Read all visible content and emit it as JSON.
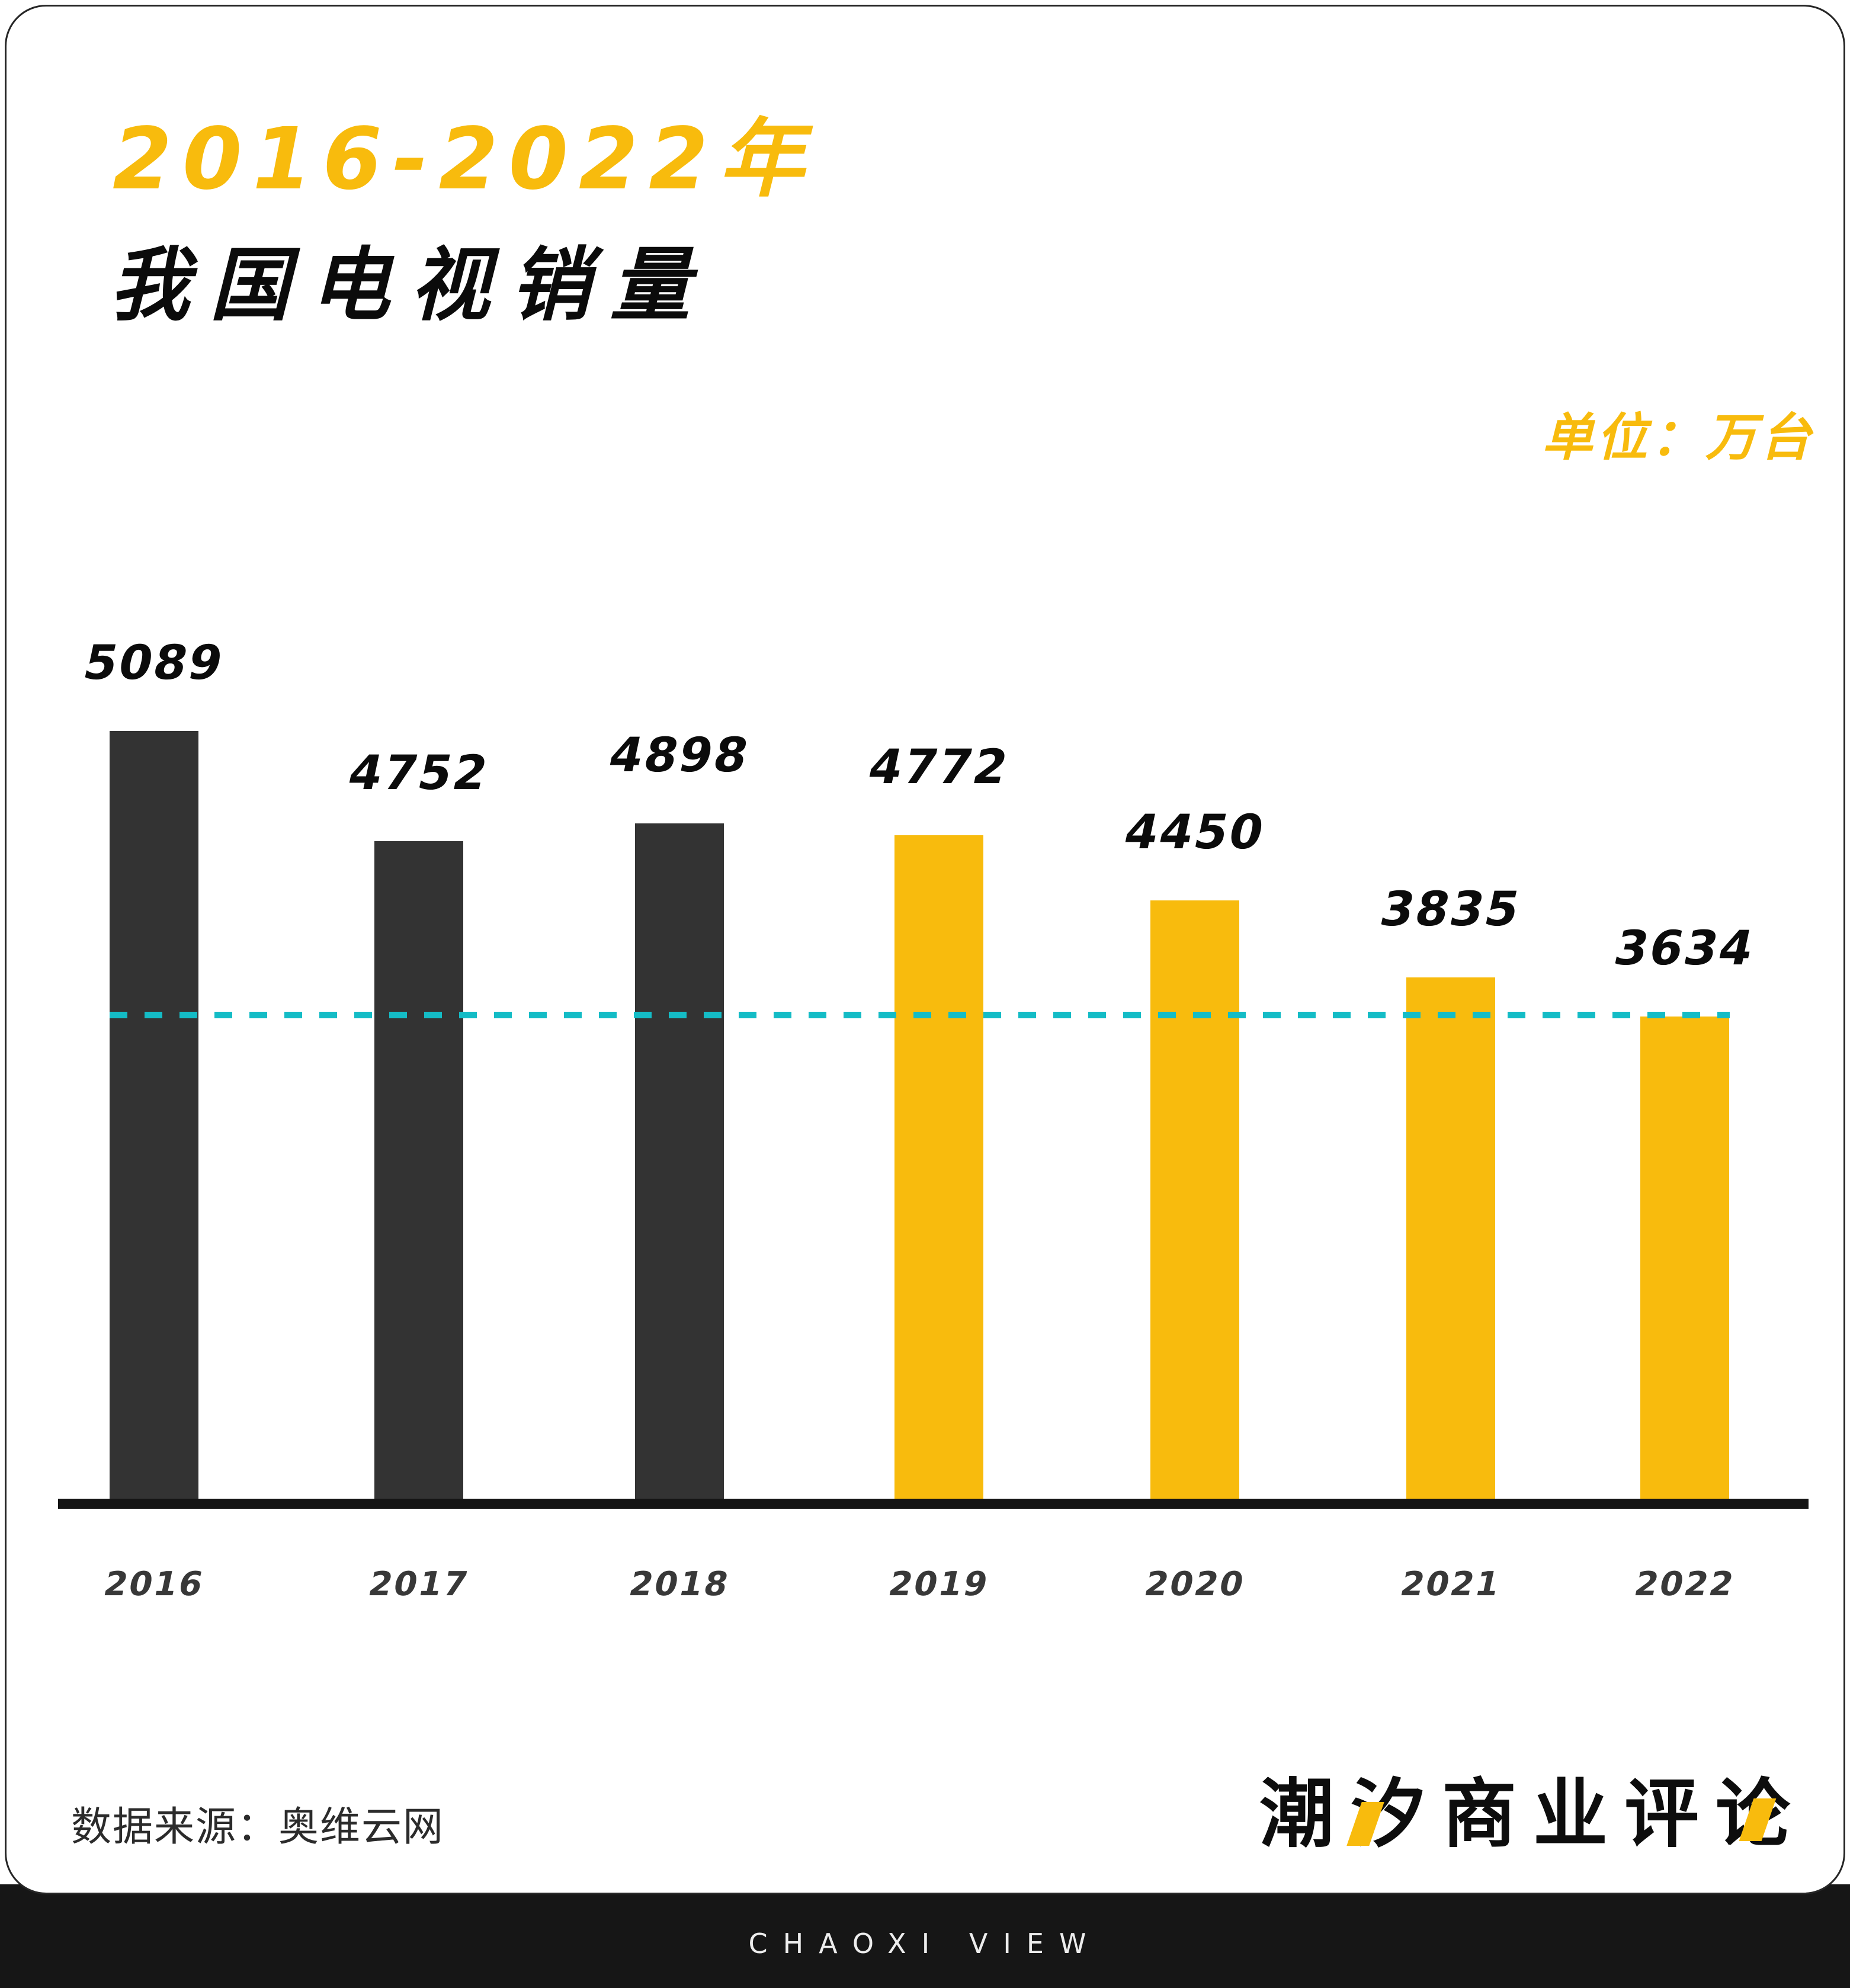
{
  "header": {
    "title": "2016-2022年",
    "subtitle": "我国电视销量",
    "unit_label": "单位：万台"
  },
  "chart_data": {
    "type": "bar",
    "title": "2016-2022年我国电视销量",
    "unit": "万台",
    "categories": [
      "2016",
      "2017",
      "2018",
      "2019",
      "2020",
      "2021",
      "2022"
    ],
    "values": [
      5089,
      4752,
      4898,
      4772,
      4450,
      3835,
      3634
    ],
    "bar_colors": [
      "#333333",
      "#333333",
      "#333333",
      "#F8BB0D",
      "#F8BB0D",
      "#F8BB0D",
      "#F8BB0D"
    ],
    "value_labels_shown": true,
    "reference_line": {
      "value": 3634,
      "style": "dashed",
      "color": "#14BCC6"
    },
    "baseline_color": "#141414",
    "x_axis_label_color": "#383838",
    "legend": "none",
    "gridlines": "off"
  },
  "footer": {
    "source_text": "数据来源：奥维云网",
    "logo_text": "潮汐商业评论",
    "band_text": "CHAOXI VIEW"
  },
  "colors": {
    "accent_yellow": "#F8BB0D",
    "bar_dark": "#333333",
    "teal_dash": "#14BCC6",
    "band_dark": "#161616",
    "card_border": "#262626",
    "text_black": "#0B0B0B"
  }
}
